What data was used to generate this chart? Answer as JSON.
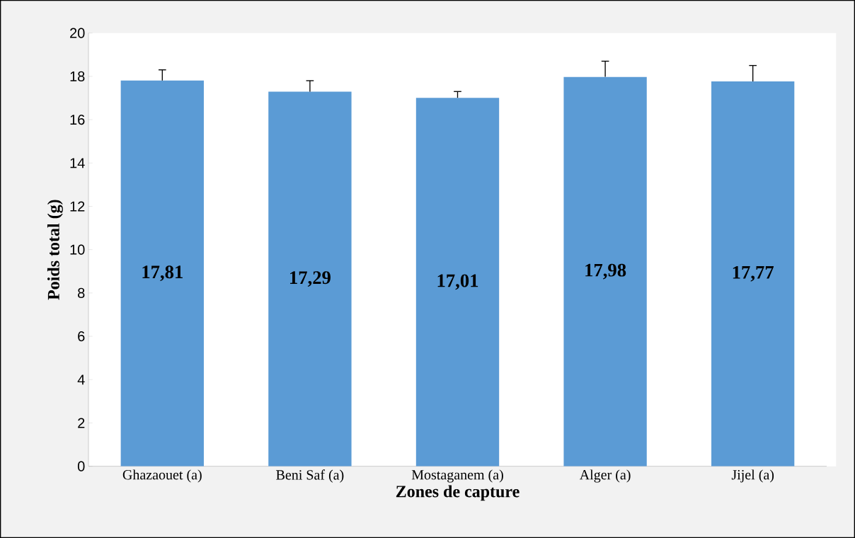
{
  "chart_data": {
    "type": "bar",
    "xlabel": "Zones de capture",
    "ylabel": "Poids total (g)",
    "categories": [
      "Ghazaouet (a)",
      "Beni Saf (a)",
      "Mostaganem (a)",
      "Alger (a)",
      "Jijel (a)"
    ],
    "values": [
      17.81,
      17.29,
      17.01,
      17.98,
      17.77
    ],
    "value_labels": [
      "17,81",
      "17,29",
      "17,01",
      "17,98",
      "17,77"
    ],
    "errors": [
      [
        17.81,
        18.3
      ],
      [
        17.29,
        17.8
      ],
      [
        17.01,
        17.3
      ],
      [
        17.98,
        18.7
      ],
      [
        17.77,
        18.5
      ]
    ],
    "color": "#5b9bd5",
    "ylim": [
      0,
      20
    ],
    "yticks": [
      0,
      2,
      4,
      6,
      8,
      10,
      12,
      14,
      16,
      18,
      20
    ]
  }
}
